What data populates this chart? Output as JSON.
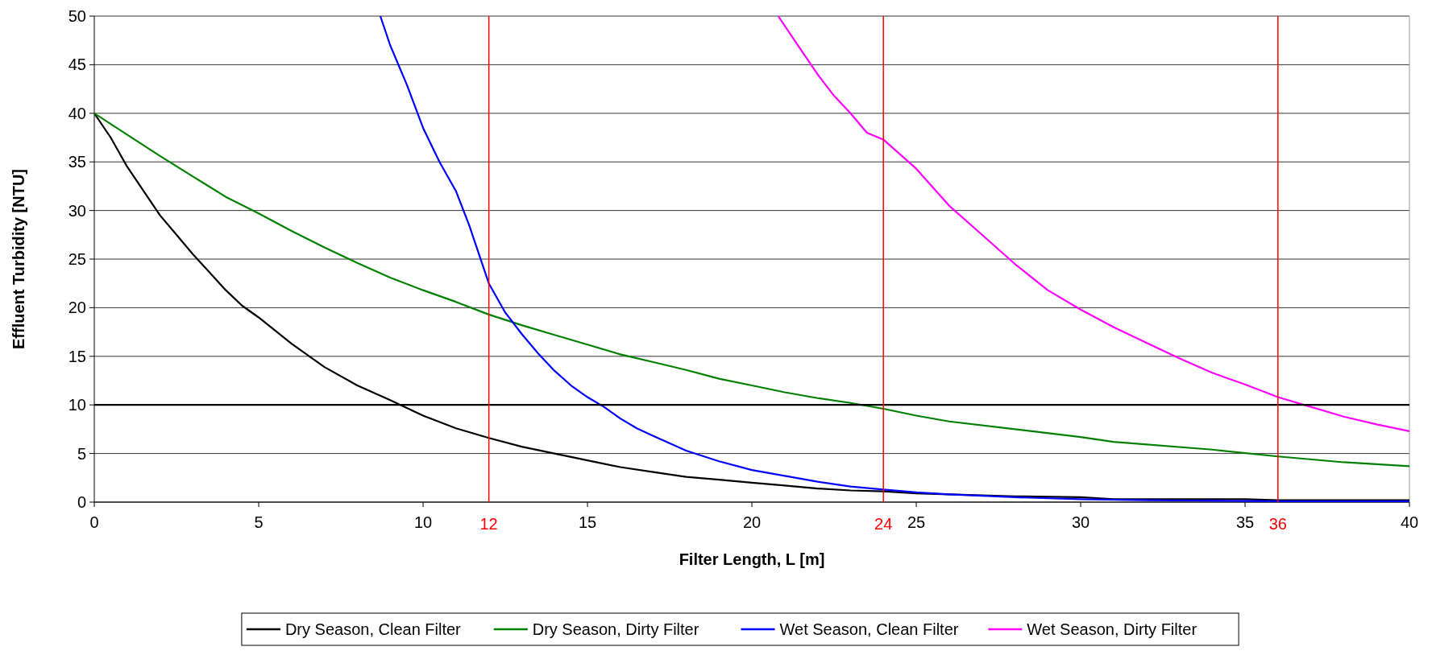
{
  "chart_data": {
    "type": "line",
    "xlabel": "Filter Length, L [m]",
    "ylabel": "Effluent Turbidity [NTU]",
    "xlim": [
      0,
      40
    ],
    "xticks": [
      0,
      5,
      10,
      15,
      20,
      25,
      30,
      35,
      40
    ],
    "ylim": [
      0,
      50
    ],
    "yticks": [
      0,
      5,
      10,
      15,
      20,
      25,
      30,
      35,
      40,
      45,
      50
    ],
    "grid": "y",
    "legend": "bottom",
    "marker": "none",
    "line_style": "solid",
    "ref_lines": [
      {
        "axis": "y",
        "value": 10,
        "color": "#000000"
      },
      {
        "axis": "x",
        "value": 12,
        "label": "12",
        "color": "#ff0000"
      },
      {
        "axis": "x",
        "value": 24,
        "label": "24",
        "color": "#ff0000"
      },
      {
        "axis": "x",
        "value": 36,
        "label": "36",
        "color": "#ff0000"
      }
    ],
    "series": [
      {
        "name": "Dry Season, Clean Filter",
        "color": "#000000",
        "x": [
          0,
          0.5,
          1,
          2,
          2.5,
          3,
          4,
          4.5,
          5,
          6,
          7,
          8,
          9,
          10,
          11,
          12,
          13,
          14,
          15,
          16,
          17,
          18,
          19,
          20,
          21,
          22,
          23,
          24,
          25,
          26,
          28,
          30,
          31,
          35,
          36,
          40
        ],
        "values": [
          40,
          37.5,
          34.5,
          29.5,
          27.5,
          25.5,
          21.8,
          20.2,
          19,
          16.3,
          13.9,
          12,
          10.5,
          8.9,
          7.6,
          6.6,
          5.7,
          5,
          4.3,
          3.6,
          3.1,
          2.6,
          2.3,
          2,
          1.7,
          1.4,
          1.2,
          1.1,
          0.9,
          0.8,
          0.6,
          0.5,
          0.3,
          0.3,
          0.2,
          0.2
        ]
      },
      {
        "name": "Dry Season, Dirty Filter",
        "color": "#008000",
        "x": [
          0,
          1,
          2,
          3,
          4,
          5,
          6,
          7,
          8,
          9,
          10,
          11,
          12,
          13,
          14,
          15,
          16,
          17,
          18,
          19,
          20,
          21,
          22,
          23,
          24,
          25,
          26,
          28,
          30,
          31,
          34,
          36,
          38,
          40
        ],
        "values": [
          40,
          37.8,
          35.6,
          33.5,
          31.4,
          29.7,
          27.9,
          26.2,
          24.6,
          23.1,
          21.8,
          20.6,
          19.3,
          18.2,
          17.2,
          16.2,
          15.2,
          14.4,
          13.6,
          12.7,
          12,
          11.3,
          10.7,
          10.2,
          9.6,
          8.9,
          8.3,
          7.5,
          6.7,
          6.2,
          5.4,
          4.7,
          4.1,
          3.7
        ]
      },
      {
        "name": "Wet Season, Clean Filter",
        "color": "#0000ff",
        "x": [
          8.7,
          9,
          9.5,
          10,
          10.5,
          11,
          11.4,
          12,
          12.5,
          13,
          13.5,
          14,
          14.5,
          15,
          15.5,
          16,
          16.5,
          17,
          18,
          19,
          20,
          21,
          22,
          23,
          24,
          25,
          26,
          28,
          30,
          32,
          36,
          40
        ],
        "values": [
          50,
          47,
          43,
          38.5,
          35,
          32,
          28.5,
          22.5,
          19.5,
          17.3,
          15.3,
          13.5,
          12,
          10.8,
          9.8,
          8.6,
          7.6,
          6.8,
          5.3,
          4.2,
          3.3,
          2.7,
          2.1,
          1.6,
          1.3,
          1,
          0.8,
          0.5,
          0.3,
          0.2,
          0.1,
          0.1
        ]
      },
      {
        "name": "Wet Season, Dirty Filter",
        "color": "#ff00ff",
        "x": [
          20.8,
          21.5,
          22,
          22.5,
          23,
          23.5,
          24,
          25,
          26,
          27,
          28,
          29,
          30,
          31,
          32,
          33,
          34,
          35,
          36,
          37,
          38,
          39,
          40
        ],
        "values": [
          50,
          46.5,
          44,
          41.8,
          40,
          38,
          37.3,
          34.3,
          30.5,
          27.5,
          24.5,
          21.8,
          19.8,
          18,
          16.4,
          14.8,
          13.3,
          12.1,
          10.8,
          9.8,
          8.8,
          8,
          7.3
        ]
      }
    ]
  }
}
